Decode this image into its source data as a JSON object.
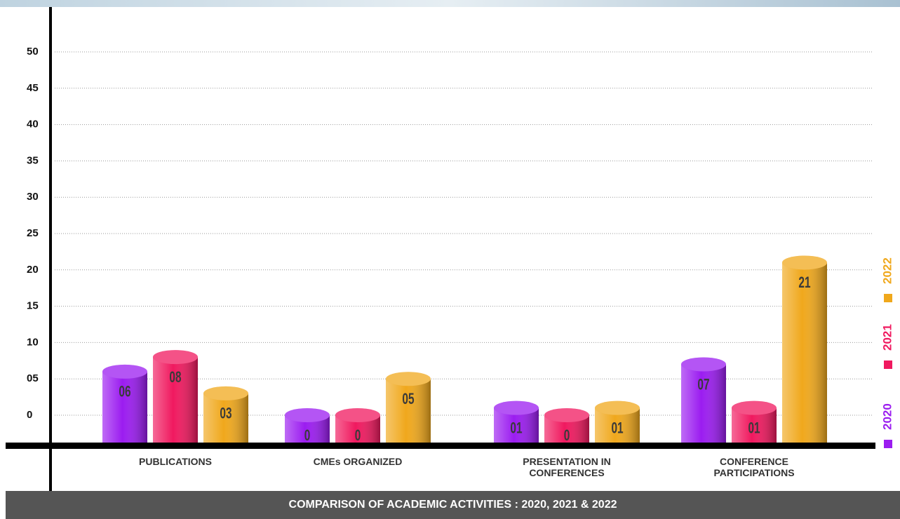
{
  "chart_data": {
    "type": "bar",
    "title": "COMPARISON OF ACADEMIC ACTIVITIES : 2020, 2021 & 2022",
    "categories": [
      "PUBLICATIONS",
      "CMEs ORGANIZED",
      "PRESENTATION IN CONFERENCES",
      "CONFERENCE PARTICIPATIONS"
    ],
    "series": [
      {
        "name": "2020",
        "color": "#9b1cf0",
        "values": [
          6,
          0,
          1,
          7
        ],
        "value_labels": [
          "06",
          "0",
          "01",
          "07"
        ]
      },
      {
        "name": "2021",
        "color": "#f0195f",
        "values": [
          8,
          0,
          0,
          1
        ],
        "value_labels": [
          "08",
          "0",
          "0",
          "01"
        ]
      },
      {
        "name": "2022",
        "color": "#f0a81c",
        "values": [
          3,
          5,
          1,
          21
        ],
        "value_labels": [
          "03",
          "05",
          "01",
          "21"
        ]
      }
    ],
    "ylim": [
      0,
      50
    ],
    "yticks": [
      0,
      {
        "value": 5,
        "label": "05"
      },
      10,
      15,
      20,
      25,
      30,
      35,
      40,
      45,
      50
    ],
    "grid": true,
    "legend": "right"
  }
}
